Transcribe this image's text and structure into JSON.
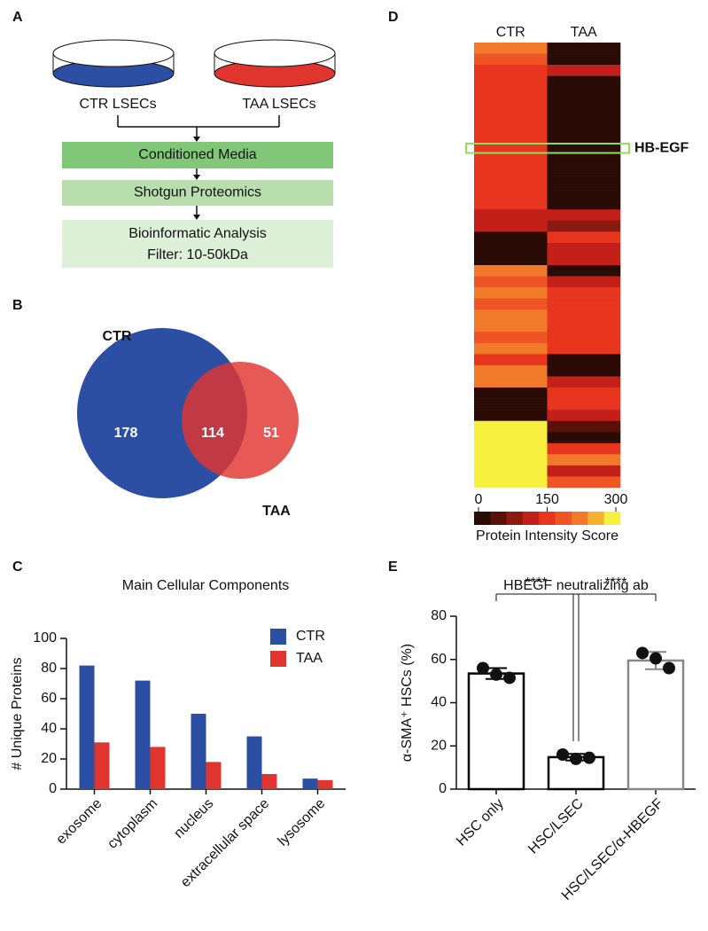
{
  "panel_labels": [
    "A",
    "B",
    "C",
    "D",
    "E"
  ],
  "flow": {
    "dishes": [
      {
        "label": "CTR LSECs",
        "color": "#2d4fa3"
      },
      {
        "label": "TAA LSECs",
        "color": "#e0342f"
      }
    ],
    "steps": [
      {
        "text": "Conditioned Media",
        "color": "#80c878"
      },
      {
        "text": "Shotgun Proteomics",
        "color": "#b8deae"
      },
      {
        "text": "Bioinformatic Analysis",
        "color": "#ddf0d8"
      }
    ],
    "filter": "Filter: 10-50kDa"
  },
  "venn": {
    "sets": [
      {
        "name": "CTR",
        "color": "#2d4fa3",
        "label_color": "#1f2f8f"
      },
      {
        "name": "TAA",
        "color": "#e0342f",
        "label_color": "#8e1d1d"
      }
    ],
    "only_a": 178,
    "both": 114,
    "only_b": 51
  },
  "heatmap": {
    "columns": [
      "CTR",
      "TAA"
    ],
    "rows": [
      [
        210,
        0
      ],
      [
        190,
        0
      ],
      [
        160,
        130
      ],
      [
        150,
        0
      ],
      [
        150,
        0
      ],
      [
        140,
        0
      ],
      [
        150,
        0
      ],
      [
        150,
        0
      ],
      [
        150,
        0
      ],
      [
        150,
        0
      ],
      [
        150,
        0
      ],
      [
        150,
        0
      ],
      [
        150,
        0
      ],
      [
        150,
        0
      ],
      [
        150,
        0
      ],
      [
        110,
        120
      ],
      [
        120,
        90
      ],
      [
        0,
        140
      ],
      [
        0,
        100
      ],
      [
        0,
        130
      ],
      [
        200,
        0
      ],
      [
        190,
        130
      ],
      [
        210,
        150
      ],
      [
        190,
        150
      ],
      [
        220,
        150
      ],
      [
        200,
        150
      ],
      [
        180,
        150
      ],
      [
        210,
        150
      ],
      [
        140,
        30
      ],
      [
        200,
        0
      ],
      [
        210,
        110
      ],
      [
        0,
        150
      ],
      [
        0,
        150
      ],
      [
        0,
        120
      ],
      [
        280,
        60
      ],
      [
        270,
        30
      ],
      [
        290,
        140
      ],
      [
        280,
        200
      ],
      [
        270,
        120
      ],
      [
        290,
        180
      ]
    ],
    "highlight_label": "HB-EGF",
    "colors": [
      "#2b0b05",
      "#5a1208",
      "#8c1a10",
      "#c4201a",
      "#e8351e",
      "#ee5424",
      "#f07a2a",
      "#f8b030",
      "#f8f040"
    ],
    "range": [
      0,
      300
    ],
    "ticks": [
      0,
      150,
      300
    ],
    "colorbar_label": "Protein Intensity Score"
  },
  "chart_data": [
    {
      "type": "bar",
      "title": "Main Cellular Components",
      "y_label": "# Unique Proteins",
      "categories": [
        "exosome",
        "cytoplasm",
        "nucleus",
        "extracellular space",
        "lysosome"
      ],
      "series": [
        {
          "name": "CTR",
          "color": "#2d4fa3",
          "values": [
            82,
            72,
            50,
            35,
            7
          ]
        },
        {
          "name": "TAA",
          "color": "#e0342f",
          "values": [
            31,
            28,
            18,
            10,
            6
          ]
        }
      ],
      "ylim": [
        0,
        100
      ],
      "yticks": [
        0,
        20,
        40,
        60,
        80,
        100
      ],
      "legend": "upper right"
    },
    {
      "type": "bar",
      "title": "HBEGF neutralizing ab",
      "y_label": "α-SMA⁺ HSCs (%)",
      "categories": [
        "HSC only",
        "HSC/LSEC",
        "HSC/LSEC/α-HBEGF"
      ],
      "values": [
        53.5,
        14.8,
        59.5
      ],
      "errors": [
        2.5,
        1.5,
        4
      ],
      "points": [
        [
          56,
          53,
          51.5
        ],
        [
          16,
          14,
          14.5
        ],
        [
          63,
          60.5,
          56
        ]
      ],
      "colors": [
        "#000000",
        "#000000",
        "#888888"
      ],
      "ylim": [
        0,
        80
      ],
      "yticks": [
        0,
        20,
        40,
        60,
        80
      ],
      "annotations": [
        "****",
        "****"
      ]
    }
  ]
}
